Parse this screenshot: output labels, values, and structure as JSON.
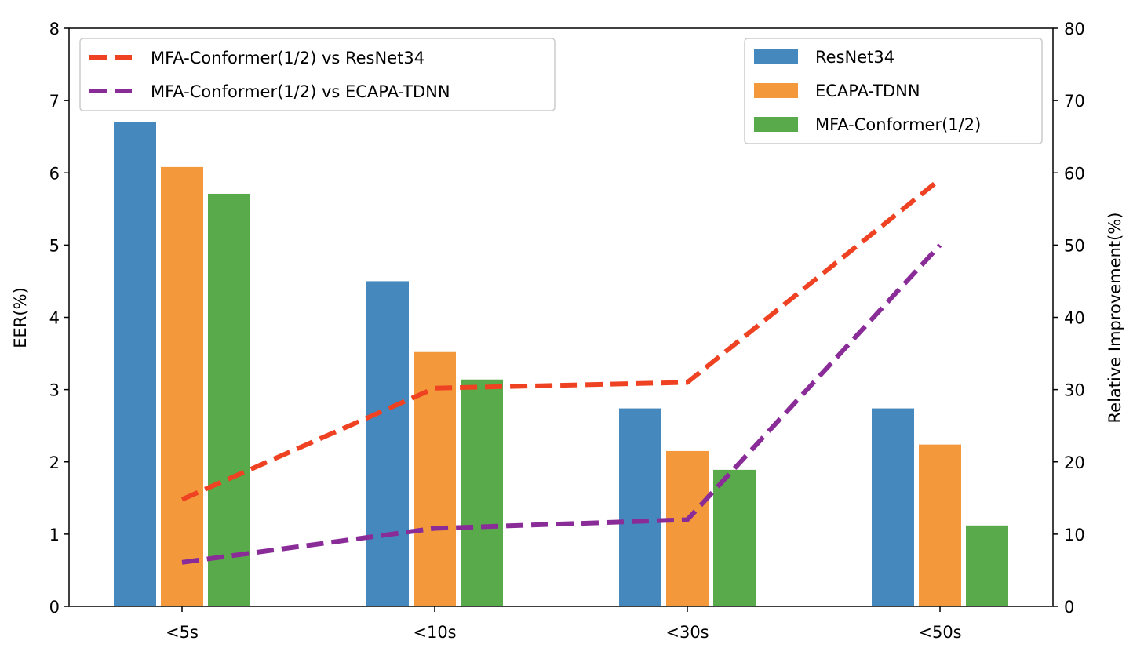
{
  "chart_data": {
    "type": "bar",
    "categories": [
      "<5s",
      "<10s",
      "<30s",
      "<50s"
    ],
    "ylabel": "EER(%)",
    "ylim": [
      0,
      8
    ],
    "yticks": [
      "0",
      "1",
      "2",
      "3",
      "4",
      "5",
      "6",
      "7",
      "8"
    ],
    "y2label": "Relative Improvement(%)",
    "y2lim": [
      0,
      80
    ],
    "y2ticks": [
      "0",
      "10",
      "20",
      "30",
      "40",
      "50",
      "60",
      "70",
      "80"
    ],
    "series": [
      {
        "name": "ResNet34",
        "color": "#4488bd",
        "values": [
          6.7,
          4.5,
          2.74,
          2.74
        ]
      },
      {
        "name": "ECAPA-TDNN",
        "color": "#f3993b",
        "values": [
          6.08,
          3.52,
          2.15,
          2.24
        ]
      },
      {
        "name": "MFA-Conformer(1/2)",
        "color": "#59aa4a",
        "values": [
          5.71,
          3.14,
          1.89,
          1.12
        ]
      }
    ],
    "lines": [
      {
        "name": "MFA-Conformer(1/2) vs ResNet34",
        "color": "#ee4222",
        "axis": "right",
        "values": [
          14.8,
          30.2,
          31.0,
          59.1
        ]
      },
      {
        "name": "MFA-Conformer(1/2) vs ECAPA-TDNN",
        "color": "#8a2c98",
        "axis": "right",
        "values": [
          6.1,
          10.8,
          12.0,
          50.0
        ]
      }
    ],
    "legends": {
      "lines": "top-left",
      "bars": "top-right"
    }
  }
}
